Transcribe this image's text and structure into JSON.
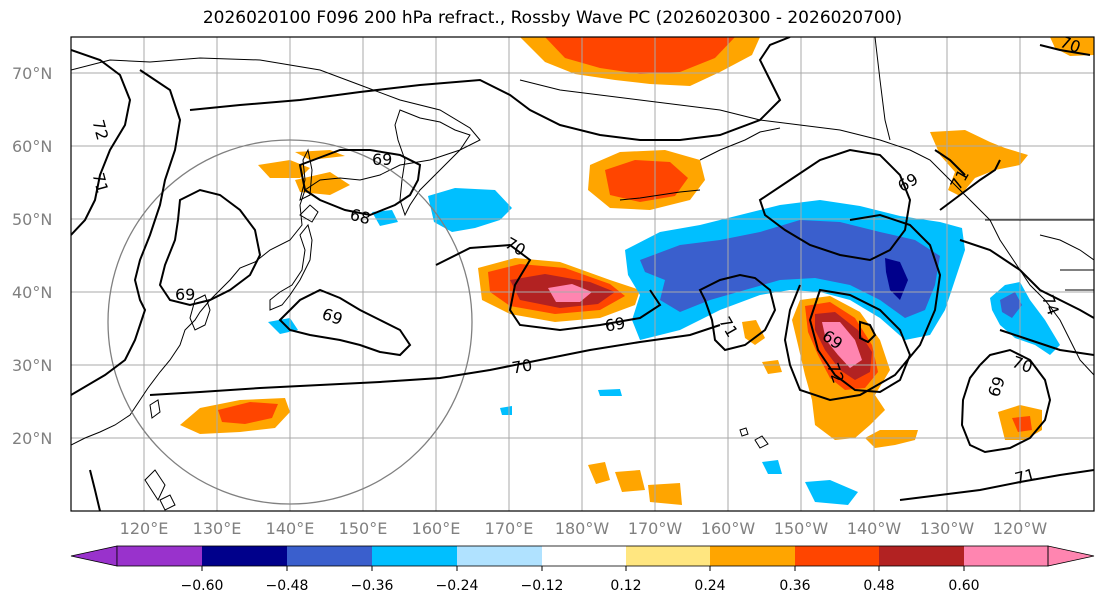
{
  "title": "2026020100 F096 200 hPa refract., Rossby Wave PC (2026020300 - 2026020700)",
  "lat_labels": [
    "70°N",
    "60°N",
    "50°N",
    "40°N",
    "30°N",
    "20°N"
  ],
  "lon_labels": [
    "120°E",
    "130°E",
    "140°E",
    "150°E",
    "160°E",
    "170°E",
    "180°W",
    "170°W",
    "160°W",
    "150°W",
    "140°W",
    "130°W",
    "120°W"
  ],
  "contour_labels": [
    "72",
    "71",
    "69",
    "68",
    "70",
    "69",
    "69",
    "70",
    "71",
    "69",
    "72",
    "69",
    "74",
    "70",
    "69",
    "71",
    "71",
    "70",
    "69"
  ],
  "colorbar": {
    "tick_labels": [
      "−0.60",
      "−0.48",
      "−0.36",
      "−0.24",
      "−0.12",
      "0.12",
      "0.24",
      "0.36",
      "0.48",
      "0.60"
    ],
    "colors": [
      "#9932cc",
      "#00008b",
      "#3a5fcd",
      "#00bfff",
      "#b0e2ff",
      "#ffffff",
      "#ffe680",
      "#ffa500",
      "#ff4500",
      "#b22222",
      "#ff85b0"
    ]
  },
  "colors": {
    "grid": "#a9a9a9",
    "coast": "#000000",
    "circle": "#808080",
    "label_gray": "#808080"
  }
}
